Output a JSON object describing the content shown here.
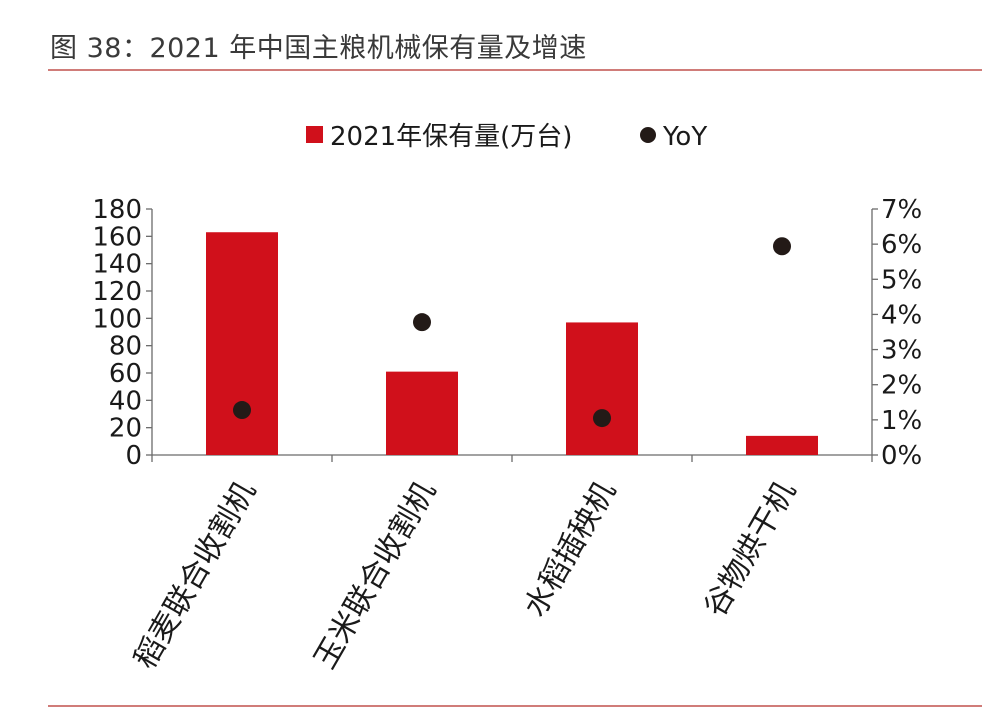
{
  "figure": {
    "title": "图 38：2021 年中国主粮机械保有量及增速"
  },
  "colors": {
    "bar": "#d0101b",
    "dot": "#231a17",
    "rule": "#c0504d",
    "axis": "#6b6b6b",
    "text": "#1a1a1a"
  },
  "chart_data": {
    "type": "bar",
    "categories": [
      "稻麦联合收割机",
      "玉米联合收割机",
      "水稻插秧机",
      "谷物烘干机"
    ],
    "series": [
      {
        "name": "2021年保有量(万台)",
        "type": "bar",
        "axis": "left",
        "values": [
          163,
          61,
          97,
          14
        ]
      },
      {
        "name": "YoY",
        "type": "scatter",
        "axis": "right",
        "values": [
          0.0128,
          0.0378,
          0.0105,
          0.0594
        ]
      }
    ],
    "y_left": {
      "min": 0,
      "max": 180,
      "ticks": [
        "0",
        "20",
        "40",
        "60",
        "80",
        "100",
        "120",
        "140",
        "160",
        "180"
      ]
    },
    "y_right": {
      "min": 0,
      "max": 0.07,
      "ticks": [
        "0%",
        "1%",
        "2%",
        "3%",
        "4%",
        "5%",
        "6%",
        "7%"
      ]
    },
    "legend_position": "top-center",
    "grid": false
  }
}
